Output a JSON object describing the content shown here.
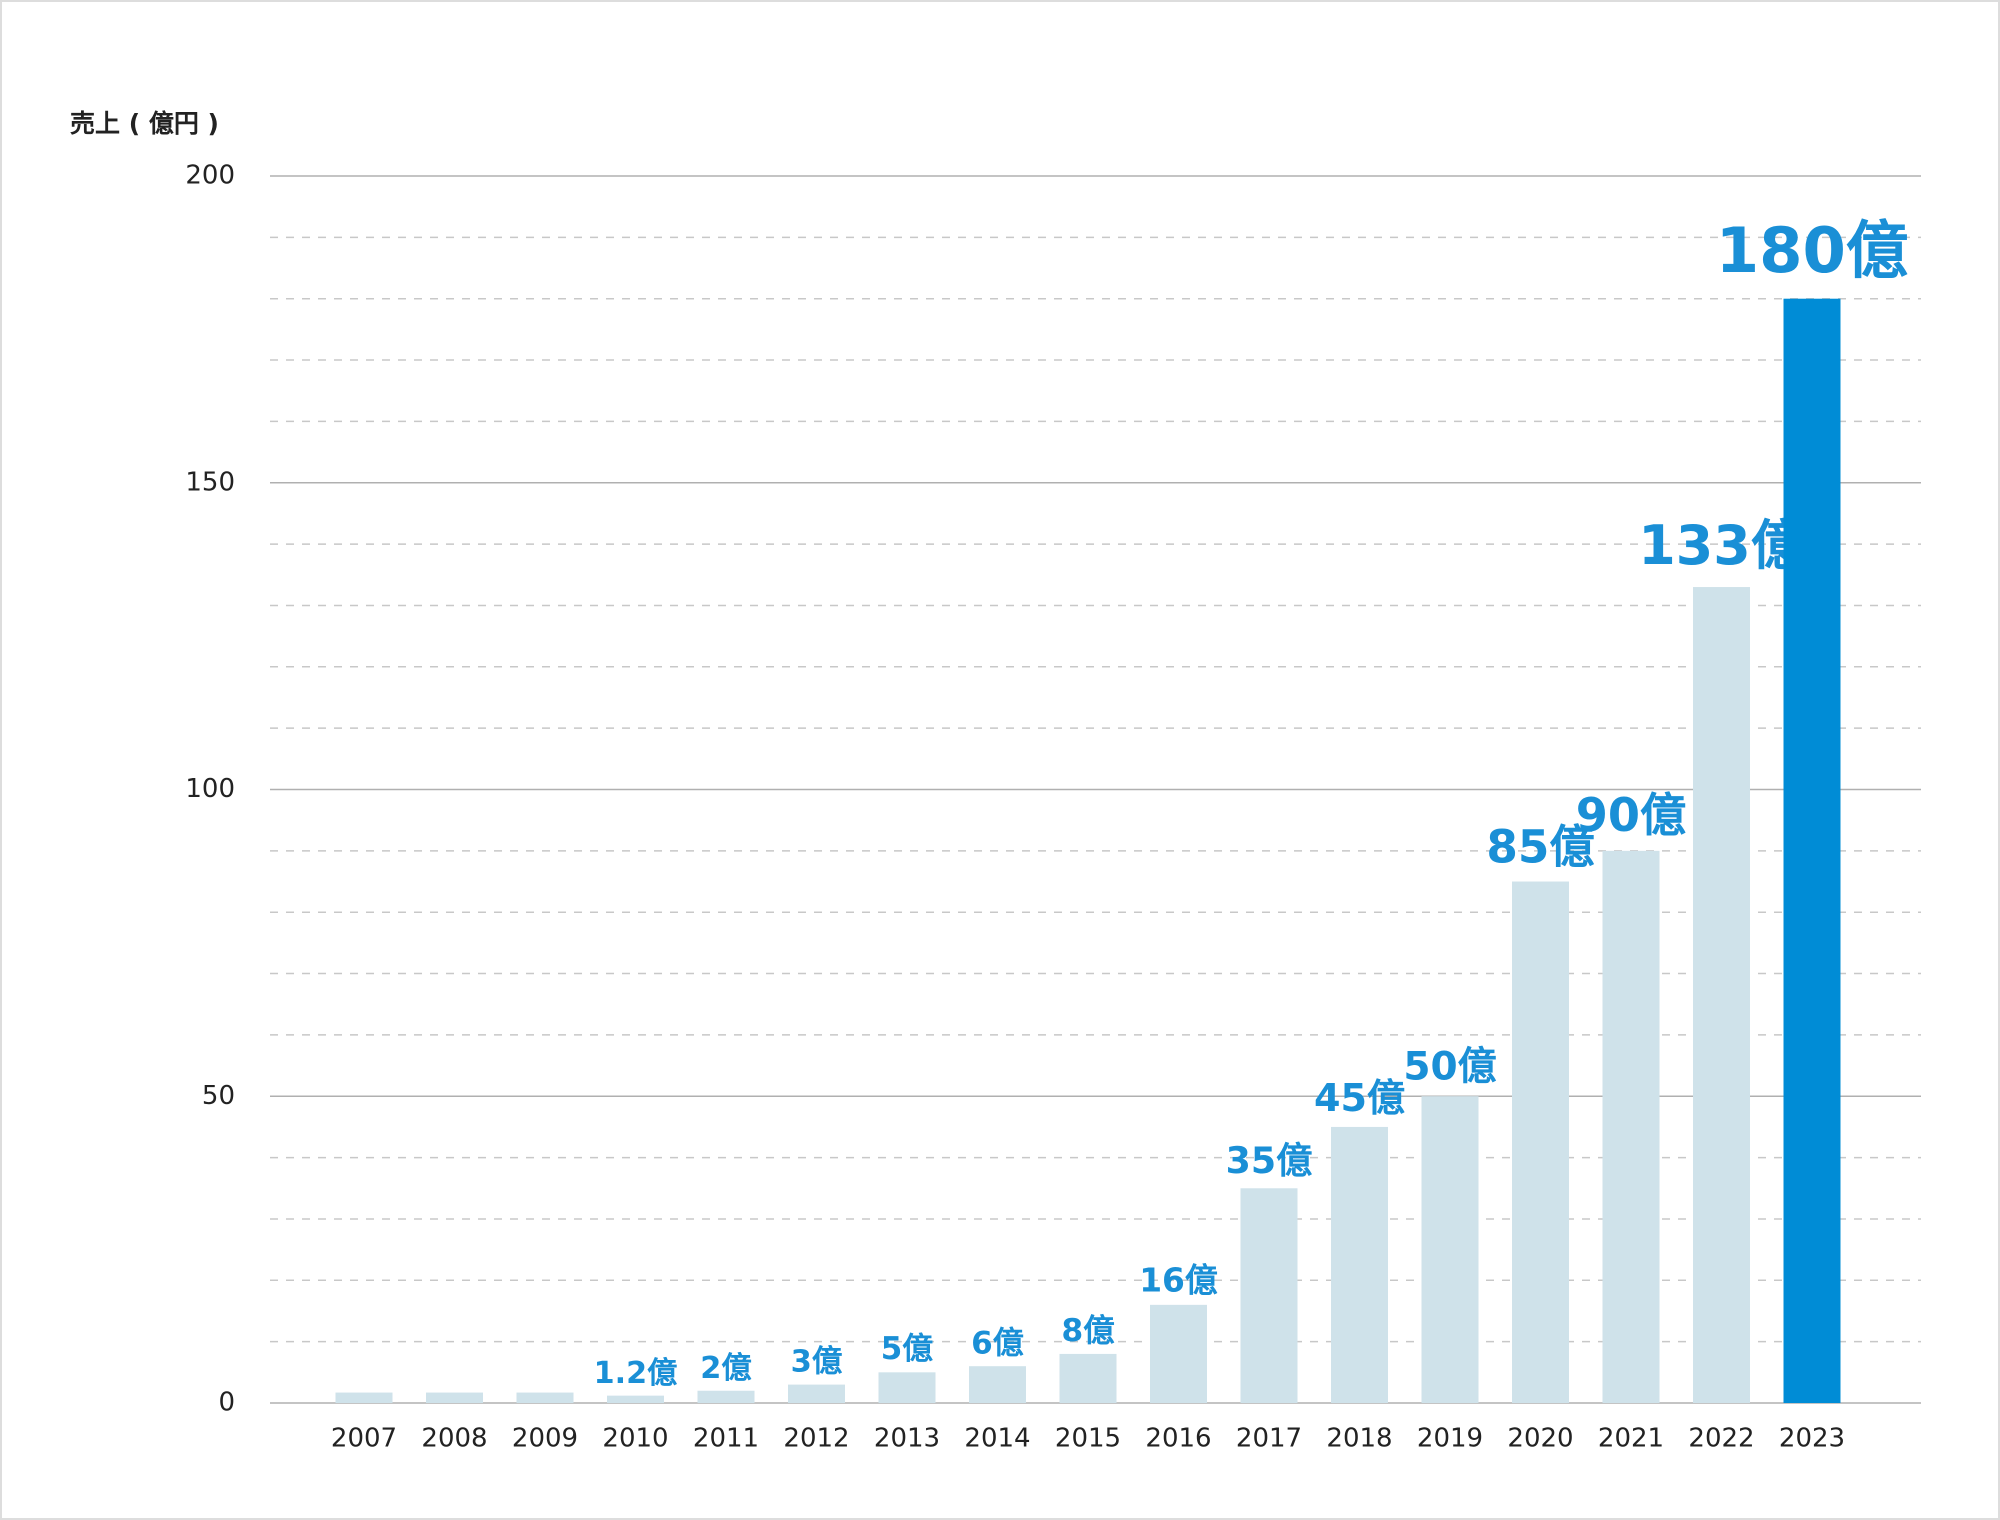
{
  "chart_data": {
    "type": "bar",
    "y_axis_label": "売上 ( 億円 )",
    "categories": [
      "2007",
      "2008",
      "2009",
      "2010",
      "2011",
      "2012",
      "2013",
      "2014",
      "2015",
      "2016",
      "2017",
      "2018",
      "2019",
      "2020",
      "2021",
      "2022",
      "2023"
    ],
    "values": [
      1.7,
      1.7,
      1.7,
      1.2,
      2,
      3,
      5,
      6,
      8,
      16,
      35,
      45,
      50,
      85,
      90,
      133,
      180
    ],
    "value_labels": [
      null,
      null,
      null,
      "1.2億",
      "2億",
      "3億",
      "5億",
      "6億",
      "8億",
      "16億",
      "35億",
      "45億",
      "50億",
      "85億",
      "90億",
      "133億",
      "180億"
    ],
    "colors": [
      "#cfe2ea",
      "#cfe2ea",
      "#cfe2ea",
      "#cfe2ea",
      "#cfe2ea",
      "#cfe2ea",
      "#cfe2ea",
      "#cfe2ea",
      "#cfe2ea",
      "#cfe2ea",
      "#cfe2ea",
      "#cfe2ea",
      "#cfe2ea",
      "#cfe2ea",
      "#cfe2ea",
      "#cfe2ea",
      "#008cd6"
    ],
    "value_label_color": "#1a8fd6",
    "ylim": [
      0,
      200
    ],
    "yticks": [
      0,
      50,
      100,
      150,
      200
    ],
    "minor_yticks": [
      10,
      20,
      30,
      40,
      60,
      70,
      80,
      90,
      110,
      120,
      130,
      140,
      160,
      170,
      180,
      190
    ],
    "grid": true
  }
}
